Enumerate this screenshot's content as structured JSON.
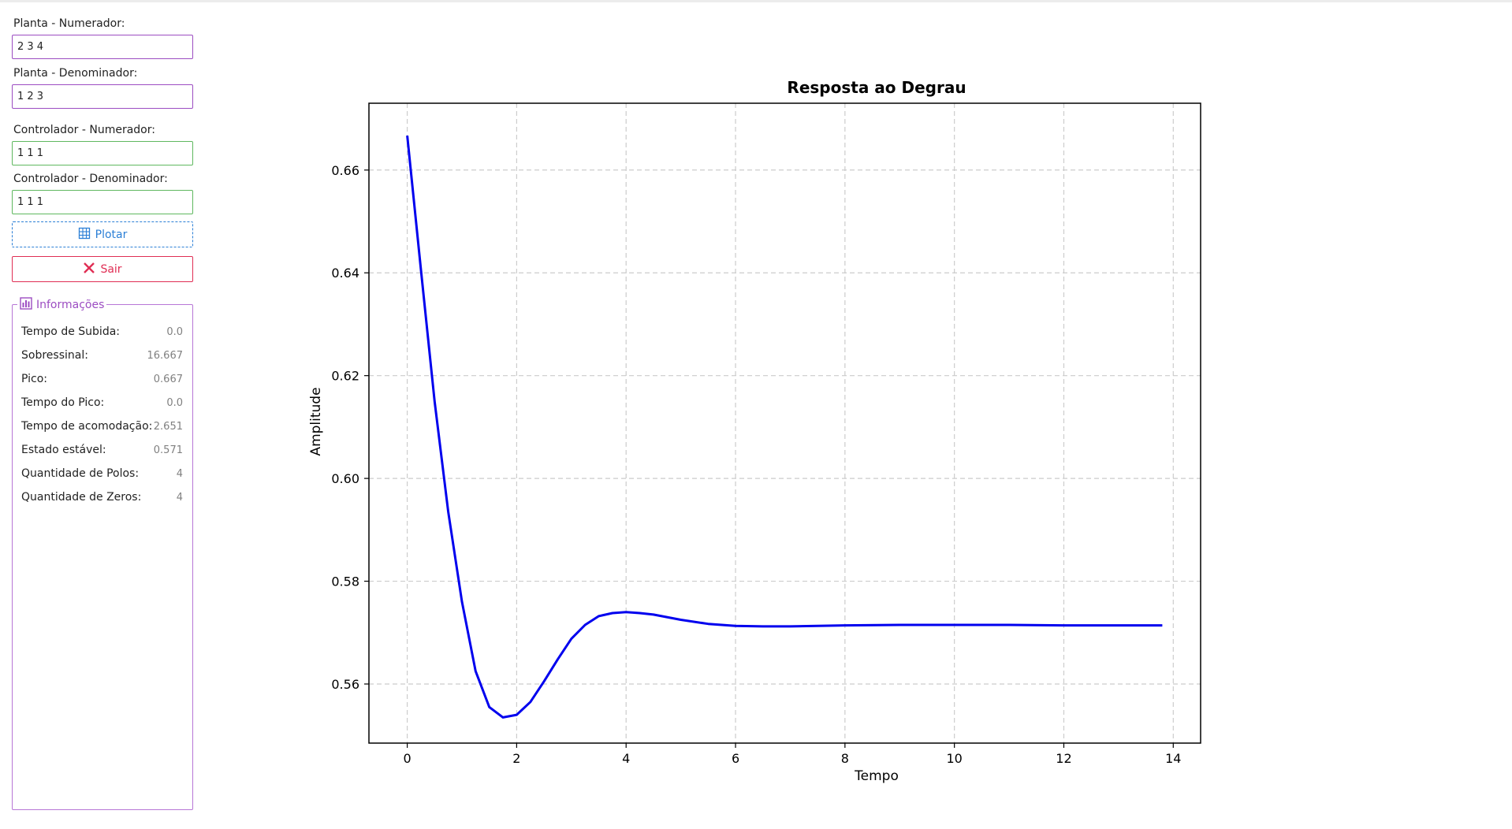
{
  "form": {
    "plant_num_label": "Planta - Numerador:",
    "plant_num_value": "2 3 4",
    "plant_den_label": "Planta - Denominador:",
    "plant_den_value": "1 2 3",
    "ctrl_num_label": "Controlador - Numerador:",
    "ctrl_num_value": "1 1 1",
    "ctrl_den_label": "Controlador - Denominador:",
    "ctrl_den_value": "1 1 1"
  },
  "buttons": {
    "plot_label": "Plotar",
    "exit_label": "Sair"
  },
  "info": {
    "title": "Informações",
    "rows": [
      {
        "label": "Tempo de Subida:",
        "value": "0.0"
      },
      {
        "label": "Sobressinal:",
        "value": "16.667"
      },
      {
        "label": "Pico:",
        "value": "0.667"
      },
      {
        "label": "Tempo do Pico:",
        "value": "0.0"
      },
      {
        "label": "Tempo de acomodação:",
        "value": "2.651"
      },
      {
        "label": "Estado estável:",
        "value": "0.571"
      },
      {
        "label": "Quantidade de Polos:",
        "value": "4"
      },
      {
        "label": "Quantidade de Zeros:",
        "value": "4"
      }
    ]
  },
  "colors": {
    "purple_border": "#9c4dc2",
    "green_border": "#5fb85f",
    "plot_blue": "#2b7fd6",
    "exit_red": "#e02e54",
    "line_color": "#0000ee"
  },
  "icons": {
    "plot_button": "grid-chart-icon",
    "exit_button": "close-x-icon",
    "info_title": "bar-chart-icon"
  },
  "chart_data": {
    "type": "line",
    "title": "Resposta ao Degrau",
    "xlabel": "Tempo",
    "ylabel": "Amplitude",
    "xlim": [
      -0.7,
      14.5
    ],
    "ylim": [
      0.5485,
      0.673
    ],
    "xticks": [
      0,
      2,
      4,
      6,
      8,
      10,
      12,
      14
    ],
    "yticks": [
      0.56,
      0.58,
      0.6,
      0.62,
      0.64,
      0.66
    ],
    "grid": true,
    "series": [
      {
        "x": [
          0,
          0.25,
          0.5,
          0.75,
          1.0,
          1.25,
          1.5,
          1.75,
          2.0,
          2.25,
          2.5,
          2.75,
          3.0,
          3.25,
          3.5,
          3.75,
          4.0,
          4.25,
          4.5,
          5.0,
          5.5,
          6.0,
          6.5,
          7.0,
          7.5,
          8.0,
          9.0,
          10.0,
          11.0,
          12.0,
          13.0,
          13.8
        ],
        "y": [
          0.6667,
          0.6407,
          0.615,
          0.5935,
          0.576,
          0.5625,
          0.5555,
          0.5535,
          0.554,
          0.5565,
          0.5605,
          0.5648,
          0.5688,
          0.5715,
          0.5732,
          0.5738,
          0.574,
          0.5738,
          0.5735,
          0.5725,
          0.5717,
          0.5713,
          0.5712,
          0.5712,
          0.5713,
          0.5714,
          0.5715,
          0.5715,
          0.5715,
          0.5714,
          0.5714,
          0.5714
        ]
      }
    ]
  }
}
